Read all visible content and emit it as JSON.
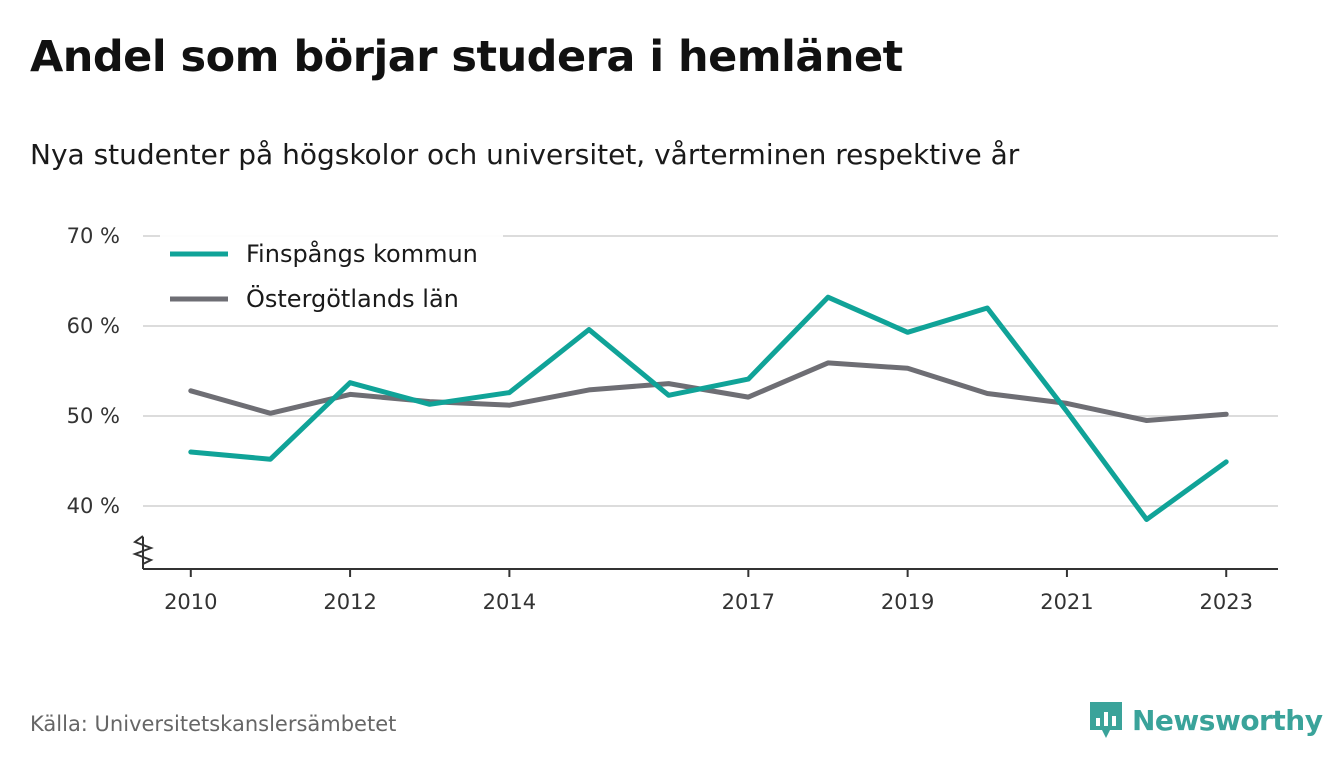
{
  "title": "Andel som börjar studera i hemlänet",
  "subtitle": "Nya studenter på högskolor och universitet, vårterminen respektive år",
  "source": "Källa: Universitetskanslersämbetet",
  "brand": {
    "name": "Newsworthy",
    "icon": "newsworthy-logo-icon",
    "color": "#3aa39a"
  },
  "chart_data": {
    "type": "line",
    "x": [
      2010,
      2011,
      2012,
      2013,
      2014,
      2015,
      2016,
      2017,
      2018,
      2019,
      2020,
      2021,
      2022,
      2023
    ],
    "x_tick_labels": [
      "2010",
      "2012",
      "2014",
      "2017",
      "2019",
      "2021",
      "2023"
    ],
    "x_tick_values": [
      2010,
      2012,
      2014,
      2017,
      2019,
      2021,
      2023
    ],
    "y_tick_labels": [
      "70 %",
      "60 %",
      "50 %",
      "40 %"
    ],
    "y_tick_values": [
      70,
      60,
      50,
      40
    ],
    "ylim": [
      33,
      70
    ],
    "xlim": [
      2009.4,
      2023.65
    ],
    "y_axis_break": true,
    "grid": true,
    "legend_position": "top-left",
    "series": [
      {
        "name": "Finspångs kommun",
        "color": "#10a398",
        "values": [
          46.0,
          45.2,
          53.7,
          51.3,
          52.6,
          59.6,
          52.3,
          54.1,
          63.2,
          59.3,
          62.0,
          50.5,
          38.5,
          44.9
        ]
      },
      {
        "name": "Östergötlands län",
        "color": "#6e6e74",
        "values": [
          52.8,
          50.3,
          52.4,
          51.6,
          51.2,
          52.9,
          53.6,
          52.1,
          55.9,
          55.3,
          52.5,
          51.4,
          49.5,
          50.2
        ]
      }
    ]
  }
}
